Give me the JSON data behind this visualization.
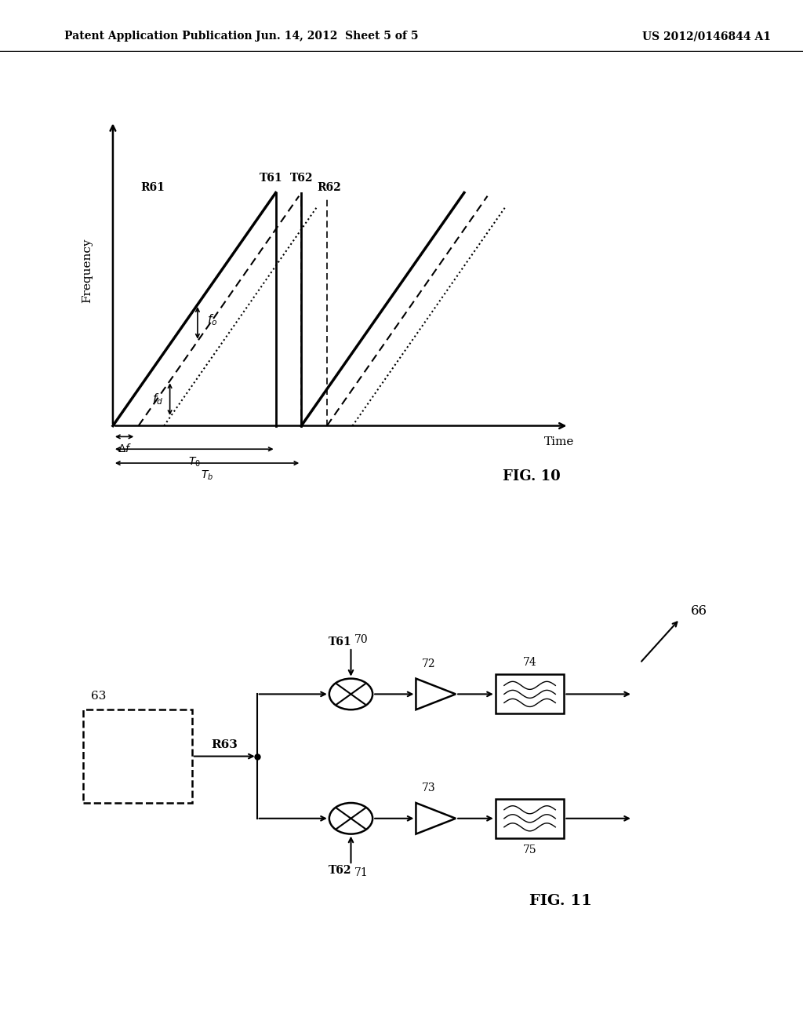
{
  "bg_color": "#ffffff",
  "header_left": "Patent Application Publication",
  "header_center": "Jun. 14, 2012  Sheet 5 of 5",
  "header_right": "US 2012/0146844 A1",
  "fig10_label": "FIG. 10",
  "fig11_label": "FIG. 11",
  "fig10_ylabel": "Frequency",
  "fig10_xlabel": "Time"
}
